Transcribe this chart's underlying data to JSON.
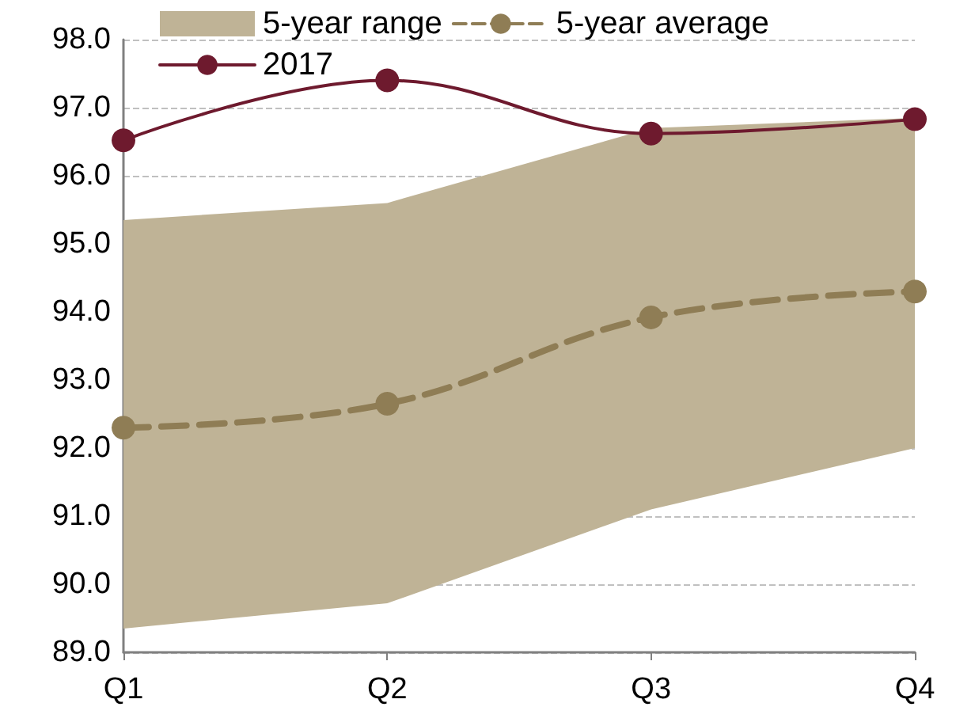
{
  "chart_data": {
    "type": "line",
    "categories": [
      "Q1",
      "Q2",
      "Q3",
      "Q4"
    ],
    "series": [
      {
        "name": "5-year range",
        "type": "area",
        "color": "#bfb396",
        "values": [
          null,
          null,
          null,
          null
        ],
        "lower": [
          89.35,
          89.72,
          91.1,
          92.0
        ],
        "upper": [
          95.35,
          95.6,
          96.7,
          96.85
        ]
      },
      {
        "name": "5-year average",
        "type": "line",
        "color": "#8f7d55",
        "line_style": "dashed",
        "marker": "circle",
        "values": [
          92.3,
          92.65,
          93.92,
          94.3
        ]
      },
      {
        "name": "2017",
        "type": "line",
        "color": "#6e1a2e",
        "line_style": "solid",
        "marker": "circle",
        "values": [
          96.52,
          97.4,
          96.62,
          96.83
        ]
      }
    ],
    "ylim": [
      89,
      98
    ],
    "yticks": [
      {
        "value": 89,
        "label": "89.0"
      },
      {
        "value": 90,
        "label": "90.0"
      },
      {
        "value": 91,
        "label": "91.0"
      },
      {
        "value": 92,
        "label": "92.0"
      },
      {
        "value": 93,
        "label": "93.0"
      },
      {
        "value": 94,
        "label": "94.0"
      },
      {
        "value": 95,
        "label": "95.0"
      },
      {
        "value": 96,
        "label": "96.0"
      },
      {
        "value": 97,
        "label": "97.0"
      },
      {
        "value": 98,
        "label": "98.0"
      }
    ],
    "grid": "y",
    "legend": "top left"
  }
}
